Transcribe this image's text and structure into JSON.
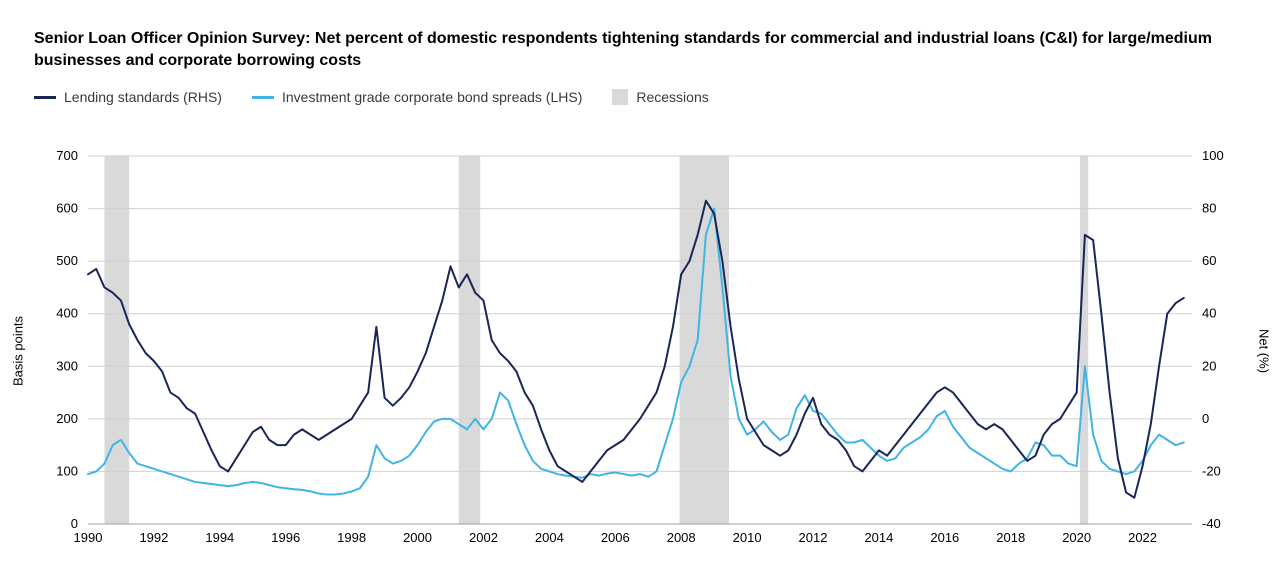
{
  "title": "Senior Loan Officer Opinion Survey: Net percent of domestic respondents tightening standards for commercial and industrial loans (C&I) for large/medium businesses and corporate borrowing costs",
  "legend": {
    "series1": "Lending standards (RHS)",
    "series2": "Investment grade corporate bond spreads (LHS)",
    "band": "Recessions"
  },
  "chart": {
    "type": "line-dual-axis",
    "background_color": "#ffffff",
    "grid_color": "#d0d0d0",
    "recession_color": "#d9d9d9",
    "font_size_ticks": 13,
    "line_width": 2,
    "x_axis": {
      "min": 1990,
      "max": 2023.5,
      "ticks": [
        1990,
        1992,
        1994,
        1996,
        1998,
        2000,
        2002,
        2004,
        2006,
        2008,
        2010,
        2012,
        2014,
        2016,
        2018,
        2020,
        2022
      ]
    },
    "y_left": {
      "label": "Basis points",
      "min": 0,
      "max": 700,
      "ticks": [
        0,
        100,
        200,
        300,
        400,
        500,
        600,
        700
      ]
    },
    "y_right": {
      "label": "Net (%)",
      "min": -40,
      "max": 100,
      "ticks": [
        -40,
        -20,
        0,
        20,
        40,
        60,
        80,
        100
      ]
    },
    "recessions": [
      {
        "start": 1990.5,
        "end": 1991.25
      },
      {
        "start": 2001.25,
        "end": 2001.9
      },
      {
        "start": 2007.95,
        "end": 2009.45
      },
      {
        "start": 2020.1,
        "end": 2020.35
      }
    ],
    "series": {
      "lending_standards": {
        "axis": "right",
        "color": "#1a2657",
        "data": [
          [
            1990.0,
            55
          ],
          [
            1990.25,
            57
          ],
          [
            1990.5,
            50
          ],
          [
            1990.75,
            48
          ],
          [
            1991.0,
            45
          ],
          [
            1991.25,
            36
          ],
          [
            1991.5,
            30
          ],
          [
            1991.75,
            25
          ],
          [
            1992.0,
            22
          ],
          [
            1992.25,
            18
          ],
          [
            1992.5,
            10
          ],
          [
            1992.75,
            8
          ],
          [
            1993.0,
            4
          ],
          [
            1993.25,
            2
          ],
          [
            1993.5,
            -5
          ],
          [
            1993.75,
            -12
          ],
          [
            1994.0,
            -18
          ],
          [
            1994.25,
            -20
          ],
          [
            1994.5,
            -15
          ],
          [
            1994.75,
            -10
          ],
          [
            1995.0,
            -5
          ],
          [
            1995.25,
            -3
          ],
          [
            1995.5,
            -8
          ],
          [
            1995.75,
            -10
          ],
          [
            1996.0,
            -10
          ],
          [
            1996.25,
            -6
          ],
          [
            1996.5,
            -4
          ],
          [
            1996.75,
            -6
          ],
          [
            1997.0,
            -8
          ],
          [
            1997.25,
            -6
          ],
          [
            1997.5,
            -4
          ],
          [
            1997.75,
            -2
          ],
          [
            1998.0,
            0
          ],
          [
            1998.25,
            5
          ],
          [
            1998.5,
            10
          ],
          [
            1998.75,
            35
          ],
          [
            1999.0,
            8
          ],
          [
            1999.25,
            5
          ],
          [
            1999.5,
            8
          ],
          [
            1999.75,
            12
          ],
          [
            2000.0,
            18
          ],
          [
            2000.25,
            25
          ],
          [
            2000.5,
            35
          ],
          [
            2000.75,
            45
          ],
          [
            2001.0,
            58
          ],
          [
            2001.25,
            50
          ],
          [
            2001.5,
            55
          ],
          [
            2001.75,
            48
          ],
          [
            2002.0,
            45
          ],
          [
            2002.25,
            30
          ],
          [
            2002.5,
            25
          ],
          [
            2002.75,
            22
          ],
          [
            2003.0,
            18
          ],
          [
            2003.25,
            10
          ],
          [
            2003.5,
            5
          ],
          [
            2003.75,
            -4
          ],
          [
            2004.0,
            -12
          ],
          [
            2004.25,
            -18
          ],
          [
            2004.5,
            -20
          ],
          [
            2004.75,
            -22
          ],
          [
            2005.0,
            -24
          ],
          [
            2005.25,
            -20
          ],
          [
            2005.5,
            -16
          ],
          [
            2005.75,
            -12
          ],
          [
            2006.0,
            -10
          ],
          [
            2006.25,
            -8
          ],
          [
            2006.5,
            -4
          ],
          [
            2006.75,
            0
          ],
          [
            2007.0,
            5
          ],
          [
            2007.25,
            10
          ],
          [
            2007.5,
            20
          ],
          [
            2007.75,
            35
          ],
          [
            2008.0,
            55
          ],
          [
            2008.25,
            60
          ],
          [
            2008.5,
            70
          ],
          [
            2008.75,
            83
          ],
          [
            2009.0,
            78
          ],
          [
            2009.25,
            60
          ],
          [
            2009.5,
            35
          ],
          [
            2009.75,
            15
          ],
          [
            2010.0,
            0
          ],
          [
            2010.25,
            -5
          ],
          [
            2010.5,
            -10
          ],
          [
            2010.75,
            -12
          ],
          [
            2011.0,
            -14
          ],
          [
            2011.25,
            -12
          ],
          [
            2011.5,
            -6
          ],
          [
            2011.75,
            2
          ],
          [
            2012.0,
            8
          ],
          [
            2012.25,
            -2
          ],
          [
            2012.5,
            -6
          ],
          [
            2012.75,
            -8
          ],
          [
            2013.0,
            -12
          ],
          [
            2013.25,
            -18
          ],
          [
            2013.5,
            -20
          ],
          [
            2013.75,
            -16
          ],
          [
            2014.0,
            -12
          ],
          [
            2014.25,
            -14
          ],
          [
            2014.5,
            -10
          ],
          [
            2014.75,
            -6
          ],
          [
            2015.0,
            -2
          ],
          [
            2015.25,
            2
          ],
          [
            2015.5,
            6
          ],
          [
            2015.75,
            10
          ],
          [
            2016.0,
            12
          ],
          [
            2016.25,
            10
          ],
          [
            2016.5,
            6
          ],
          [
            2016.75,
            2
          ],
          [
            2017.0,
            -2
          ],
          [
            2017.25,
            -4
          ],
          [
            2017.5,
            -2
          ],
          [
            2017.75,
            -4
          ],
          [
            2018.0,
            -8
          ],
          [
            2018.25,
            -12
          ],
          [
            2018.5,
            -16
          ],
          [
            2018.75,
            -14
          ],
          [
            2019.0,
            -6
          ],
          [
            2019.25,
            -2
          ],
          [
            2019.5,
            0
          ],
          [
            2019.75,
            5
          ],
          [
            2020.0,
            10
          ],
          [
            2020.25,
            70
          ],
          [
            2020.5,
            68
          ],
          [
            2020.75,
            40
          ],
          [
            2021.0,
            10
          ],
          [
            2021.25,
            -15
          ],
          [
            2021.5,
            -28
          ],
          [
            2021.75,
            -30
          ],
          [
            2022.0,
            -18
          ],
          [
            2022.25,
            -2
          ],
          [
            2022.5,
            20
          ],
          [
            2022.75,
            40
          ],
          [
            2023.0,
            44
          ],
          [
            2023.25,
            46
          ]
        ]
      },
      "ig_spreads": {
        "axis": "left",
        "color": "#40b4e5",
        "data": [
          [
            1990.0,
            95
          ],
          [
            1990.25,
            100
          ],
          [
            1990.5,
            115
          ],
          [
            1990.75,
            150
          ],
          [
            1991.0,
            160
          ],
          [
            1991.25,
            135
          ],
          [
            1991.5,
            115
          ],
          [
            1991.75,
            110
          ],
          [
            1992.0,
            105
          ],
          [
            1992.25,
            100
          ],
          [
            1992.5,
            95
          ],
          [
            1992.75,
            90
          ],
          [
            1993.0,
            85
          ],
          [
            1993.25,
            80
          ],
          [
            1993.5,
            78
          ],
          [
            1993.75,
            76
          ],
          [
            1994.0,
            74
          ],
          [
            1994.25,
            72
          ],
          [
            1994.5,
            74
          ],
          [
            1994.75,
            78
          ],
          [
            1995.0,
            80
          ],
          [
            1995.25,
            78
          ],
          [
            1995.5,
            74
          ],
          [
            1995.75,
            70
          ],
          [
            1996.0,
            68
          ],
          [
            1996.25,
            66
          ],
          [
            1996.5,
            65
          ],
          [
            1996.75,
            62
          ],
          [
            1997.0,
            58
          ],
          [
            1997.25,
            56
          ],
          [
            1997.5,
            56
          ],
          [
            1997.75,
            58
          ],
          [
            1998.0,
            62
          ],
          [
            1998.25,
            68
          ],
          [
            1998.5,
            90
          ],
          [
            1998.75,
            150
          ],
          [
            1999.0,
            125
          ],
          [
            1999.25,
            115
          ],
          [
            1999.5,
            120
          ],
          [
            1999.75,
            130
          ],
          [
            2000.0,
            150
          ],
          [
            2000.25,
            175
          ],
          [
            2000.5,
            195
          ],
          [
            2000.75,
            200
          ],
          [
            2001.0,
            200
          ],
          [
            2001.25,
            190
          ],
          [
            2001.5,
            180
          ],
          [
            2001.75,
            200
          ],
          [
            2002.0,
            180
          ],
          [
            2002.25,
            200
          ],
          [
            2002.5,
            250
          ],
          [
            2002.75,
            235
          ],
          [
            2003.0,
            190
          ],
          [
            2003.25,
            150
          ],
          [
            2003.5,
            120
          ],
          [
            2003.75,
            105
          ],
          [
            2004.0,
            100
          ],
          [
            2004.25,
            95
          ],
          [
            2004.5,
            92
          ],
          [
            2004.75,
            90
          ],
          [
            2005.0,
            88
          ],
          [
            2005.25,
            95
          ],
          [
            2005.5,
            92
          ],
          [
            2005.75,
            96
          ],
          [
            2006.0,
            98
          ],
          [
            2006.25,
            95
          ],
          [
            2006.5,
            92
          ],
          [
            2006.75,
            95
          ],
          [
            2007.0,
            90
          ],
          [
            2007.25,
            100
          ],
          [
            2007.5,
            150
          ],
          [
            2007.75,
            200
          ],
          [
            2008.0,
            270
          ],
          [
            2008.25,
            300
          ],
          [
            2008.5,
            350
          ],
          [
            2008.75,
            550
          ],
          [
            2009.0,
            600
          ],
          [
            2009.25,
            450
          ],
          [
            2009.5,
            280
          ],
          [
            2009.75,
            200
          ],
          [
            2010.0,
            170
          ],
          [
            2010.25,
            180
          ],
          [
            2010.5,
            195
          ],
          [
            2010.75,
            175
          ],
          [
            2011.0,
            160
          ],
          [
            2011.25,
            170
          ],
          [
            2011.5,
            220
          ],
          [
            2011.75,
            245
          ],
          [
            2012.0,
            215
          ],
          [
            2012.25,
            210
          ],
          [
            2012.5,
            190
          ],
          [
            2012.75,
            170
          ],
          [
            2013.0,
            155
          ],
          [
            2013.25,
            155
          ],
          [
            2013.5,
            160
          ],
          [
            2013.75,
            145
          ],
          [
            2014.0,
            130
          ],
          [
            2014.25,
            120
          ],
          [
            2014.5,
            125
          ],
          [
            2014.75,
            145
          ],
          [
            2015.0,
            155
          ],
          [
            2015.25,
            165
          ],
          [
            2015.5,
            180
          ],
          [
            2015.75,
            205
          ],
          [
            2016.0,
            215
          ],
          [
            2016.25,
            185
          ],
          [
            2016.5,
            165
          ],
          [
            2016.75,
            145
          ],
          [
            2017.0,
            135
          ],
          [
            2017.25,
            125
          ],
          [
            2017.5,
            115
          ],
          [
            2017.75,
            105
          ],
          [
            2018.0,
            100
          ],
          [
            2018.25,
            115
          ],
          [
            2018.5,
            125
          ],
          [
            2018.75,
            155
          ],
          [
            2019.0,
            150
          ],
          [
            2019.25,
            130
          ],
          [
            2019.5,
            130
          ],
          [
            2019.75,
            115
          ],
          [
            2020.0,
            110
          ],
          [
            2020.25,
            300
          ],
          [
            2020.5,
            170
          ],
          [
            2020.75,
            120
          ],
          [
            2021.0,
            105
          ],
          [
            2021.25,
            100
          ],
          [
            2021.5,
            95
          ],
          [
            2021.75,
            100
          ],
          [
            2022.0,
            120
          ],
          [
            2022.25,
            150
          ],
          [
            2022.5,
            170
          ],
          [
            2022.75,
            160
          ],
          [
            2023.0,
            150
          ],
          [
            2023.25,
            155
          ]
        ]
      }
    }
  }
}
